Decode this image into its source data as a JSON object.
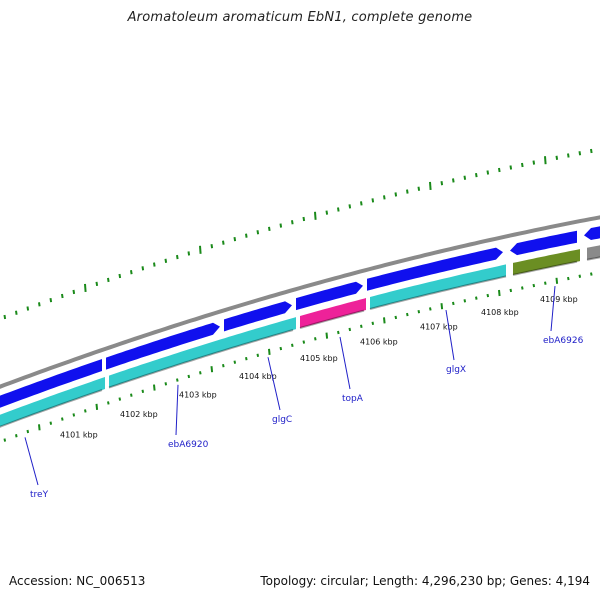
{
  "title": "Aromatoleum aromaticum EbN1, complete genome",
  "footer": {
    "accession": "Accession: NC_006513",
    "summary": "Topology: circular; Length: 4,296,230 bp; Genes: 4,194"
  },
  "colors": {
    "backbone": "#8a8a8a",
    "forward_cds": "#1010ee",
    "reverse_cds": "#33cccc",
    "highlight": "#ee2299",
    "other": "#6b8e23",
    "ticks": "#1a8a1a",
    "gene_label": "#2020c8"
  },
  "kbp_labels": [
    "4101 kbp",
    "4102 kbp",
    "4103 kbp",
    "4104 kbp",
    "4105 kbp",
    "4106 kbp",
    "4107 kbp",
    "4108 kbp",
    "4109 kbp"
  ],
  "gene_labels": [
    "treY",
    "ebA6920",
    "glgC",
    "topA",
    "glgX",
    "ebA6926"
  ],
  "forward_features": [
    {
      "start": -60,
      "end": 104,
      "strand": "forward"
    },
    {
      "start": 104,
      "end": 222,
      "strand": "forward"
    },
    {
      "start": 222,
      "end": 294,
      "strand": "forward"
    },
    {
      "start": 294,
      "end": 365,
      "strand": "forward"
    },
    {
      "start": 365,
      "end": 505,
      "strand": "forward"
    },
    {
      "start": 508,
      "end": 579,
      "strand": "forward"
    },
    {
      "start": 582,
      "end": 640,
      "strand": "forward"
    }
  ],
  "reverse_features": [
    {
      "start": -60,
      "end": 107,
      "kind": "reverse_cds"
    },
    {
      "start": 107,
      "end": 298,
      "kind": "reverse_cds"
    },
    {
      "start": 298,
      "end": 368,
      "kind": "highlight"
    },
    {
      "start": 368,
      "end": 508,
      "kind": "reverse_cds"
    },
    {
      "start": 511,
      "end": 582,
      "kind": "other"
    },
    {
      "start": 585,
      "end": 640,
      "kind": "backbone"
    }
  ]
}
